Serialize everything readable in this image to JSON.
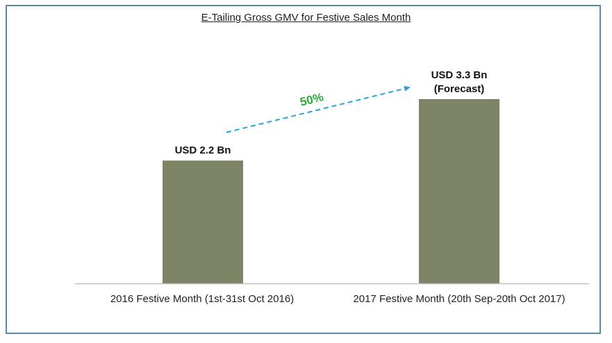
{
  "chart_data": {
    "type": "bar",
    "title": "E-Tailing Gross GMV for Festive Sales Month",
    "categories": [
      "2016 Festive Month  (1st-31st Oct 2016)",
      "2017 Festive Month  (20th Sep-20th Oct 2017)"
    ],
    "values": [
      2.2,
      3.3
    ],
    "unit": "USD Bn",
    "data_labels": [
      [
        "USD 2.2 Bn"
      ],
      [
        "USD 3.3 Bn",
        "(Forecast)"
      ]
    ],
    "annotation": {
      "text": "50%",
      "type": "growth-arrow",
      "from": 0,
      "to": 1
    },
    "xlabel": "",
    "ylabel": "",
    "ylim": [
      0,
      3.3
    ],
    "grid": false,
    "legend": "none",
    "colors": {
      "bar": "#7e8466",
      "arrow": "#29a3d6",
      "growth_text": "#2eaa3a",
      "border": "#5b88a6",
      "axis": "#bfbfbf"
    }
  }
}
